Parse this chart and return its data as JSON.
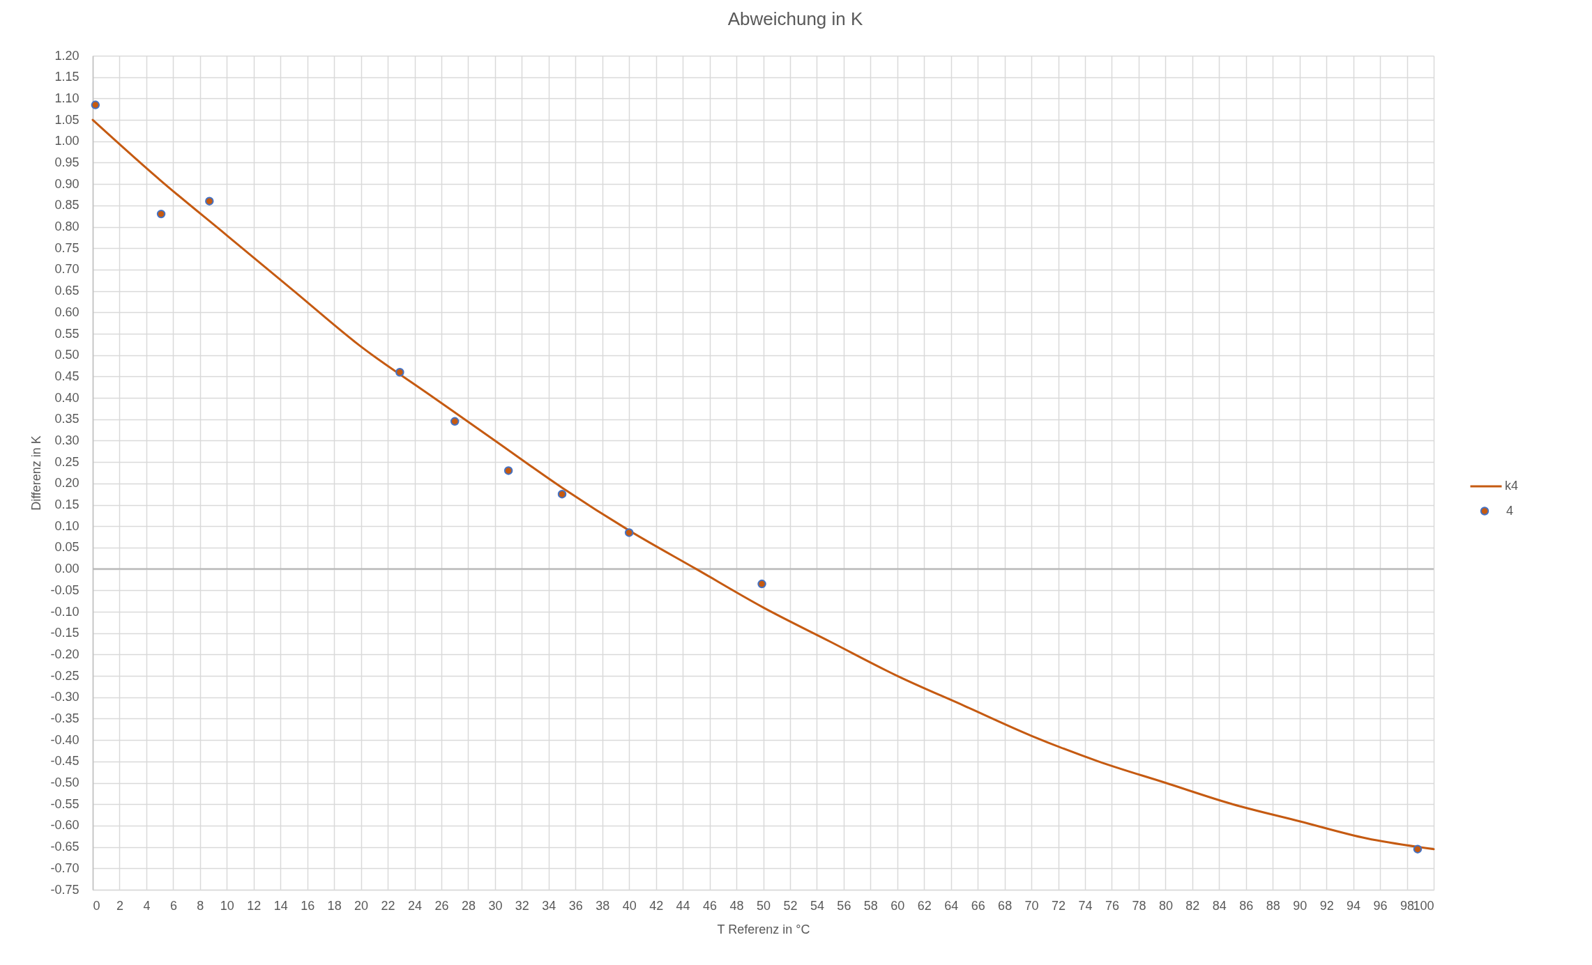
{
  "chart_data": {
    "type": "scatter",
    "title": "Abweichung in K",
    "xlabel": "T Referenz in °C",
    "ylabel": "Differenz in K",
    "series": [
      {
        "name": "k4",
        "type": "line",
        "marker": "none",
        "color": "#c55a11",
        "x": [
          0,
          5,
          10,
          15,
          20,
          25,
          30,
          35,
          40,
          45,
          50,
          55,
          60,
          65,
          70,
          75,
          80,
          85,
          90,
          95,
          100
        ],
        "values": [
          1.05,
          0.91,
          0.78,
          0.65,
          0.52,
          0.41,
          0.3,
          0.19,
          0.09,
          0.0,
          -0.09,
          -0.17,
          -0.25,
          -0.32,
          -0.39,
          -0.45,
          -0.5,
          -0.55,
          -0.59,
          -0.63,
          -0.655
        ]
      },
      {
        "name": "4",
        "type": "scatter",
        "marker": "circle",
        "color": "#c55a11",
        "x": [
          0.2,
          5.1,
          8.7,
          22.9,
          27.0,
          31.0,
          35.0,
          40.0,
          49.9,
          98.8
        ],
        "values": [
          1.085,
          0.83,
          0.86,
          0.46,
          0.345,
          0.23,
          0.175,
          0.085,
          -0.035,
          -0.655
        ]
      }
    ],
    "xlim": [
      0,
      100
    ],
    "xticks": [
      0,
      2,
      4,
      6,
      8,
      10,
      12,
      14,
      16,
      18,
      20,
      22,
      24,
      26,
      28,
      30,
      32,
      34,
      36,
      38,
      40,
      42,
      44,
      46,
      48,
      50,
      52,
      54,
      56,
      58,
      60,
      62,
      64,
      66,
      68,
      70,
      72,
      74,
      76,
      78,
      80,
      82,
      84,
      86,
      88,
      90,
      92,
      94,
      96,
      98,
      100
    ],
    "ylim": [
      -0.75,
      1.2
    ],
    "yticks": [
      -0.75,
      {
        "value": -0.7,
        "label": "-0.70"
      },
      -0.65,
      {
        "value": -0.6,
        "label": "-0.60"
      },
      -0.55,
      {
        "value": -0.5,
        "label": "-0.50"
      },
      -0.45,
      {
        "value": -0.4,
        "label": "-0.40"
      },
      -0.35,
      {
        "value": -0.3,
        "label": "-0.30"
      },
      -0.25,
      {
        "value": -0.2,
        "label": "-0.20"
      },
      -0.15,
      {
        "value": -0.1,
        "label": "-0.10"
      },
      -0.05,
      {
        "value": 0,
        "label": "0.00"
      },
      0.05,
      {
        "value": 0.1,
        "label": "0.10"
      },
      0.15,
      {
        "value": 0.2,
        "label": "0.20"
      },
      0.25,
      {
        "value": 0.3,
        "label": "0.30"
      },
      0.35,
      {
        "value": 0.4,
        "label": "0.40"
      },
      0.45,
      {
        "value": 0.5,
        "label": "0.50"
      },
      0.55,
      {
        "value": 0.6,
        "label": "0.60"
      },
      0.65,
      {
        "value": 0.7,
        "label": "0.70"
      },
      0.75,
      {
        "value": 0.8,
        "label": "0.80"
      },
      0.85,
      {
        "value": 0.9,
        "label": "0.90"
      },
      0.95,
      {
        "value": 1,
        "label": "1.00"
      },
      1.05,
      {
        "value": 1.1,
        "label": "1.10"
      },
      1.15,
      {
        "value": 1.2,
        "label": "1.20"
      }
    ],
    "ref_lines": [
      {
        "axis": "y",
        "value": 0,
        "color": "#b4b4b4"
      }
    ],
    "grid": true,
    "legend": "right"
  }
}
